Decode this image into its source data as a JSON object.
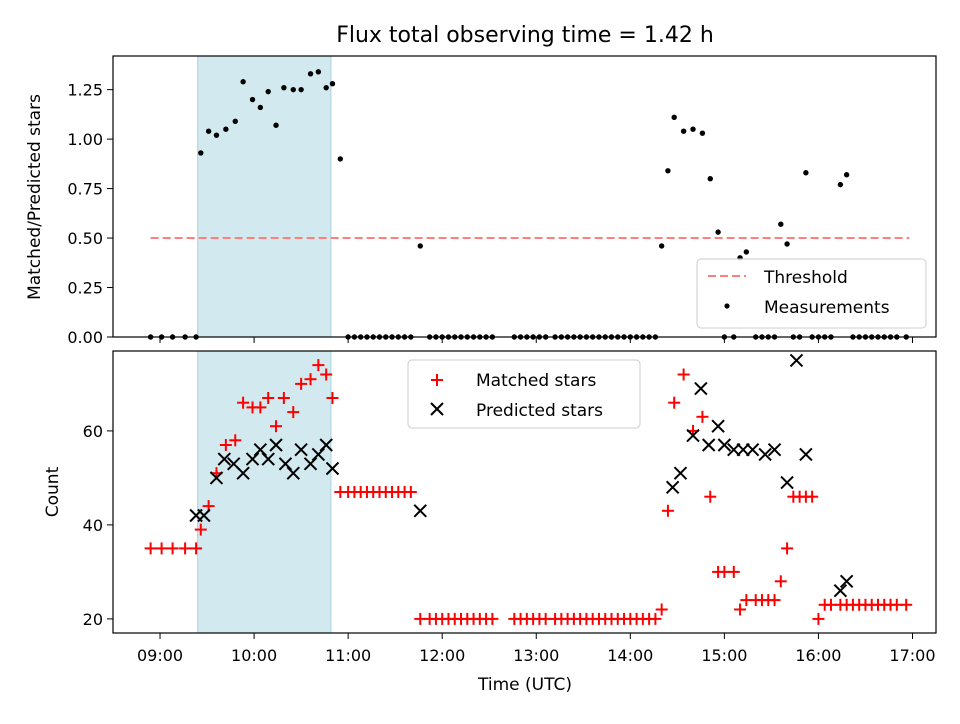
{
  "title": "Flux total observing time = 1.42 h",
  "chart_data": [
    {
      "type": "scatter",
      "ylabel": "Matched/Predicted stars",
      "xlim": [
        "08:30",
        "17:15"
      ],
      "ylim": [
        0,
        1.42
      ],
      "y_ticks": [
        0,
        0.25,
        0.5,
        0.75,
        1.0,
        1.25
      ],
      "y_tick_labels": [
        "0.00",
        "0.25",
        "0.50",
        "0.75",
        "1.00",
        "1.25"
      ],
      "shaded_interval": [
        "09:24",
        "10:49"
      ],
      "shade_color": "#d2e9f0",
      "legend": "lower-right",
      "series": [
        {
          "name": "Threshold",
          "style": "dashed-line",
          "color": "#ff7f7f",
          "x": [
            "08:54",
            "16:58"
          ],
          "y": [
            0.5,
            0.5
          ]
        },
        {
          "name": "Measurements",
          "style": "dot",
          "color": "#000000",
          "x": [
            "08:54",
            "09:01",
            "09:08",
            "09:16",
            "09:23",
            "09:26",
            "09:31",
            "09:36",
            "09:42",
            "09:48",
            "09:53",
            "09:59",
            "10:04",
            "10:09",
            "10:14",
            "10:19",
            "10:25",
            "10:30",
            "10:36",
            "10:41",
            "10:46",
            "10:50",
            "10:55",
            "11:00",
            "11:04",
            "11:08",
            "11:12",
            "11:16",
            "11:20",
            "11:24",
            "11:28",
            "11:32",
            "11:36",
            "11:40",
            "11:46",
            "11:52",
            "11:56",
            "12:00",
            "12:04",
            "12:08",
            "12:12",
            "12:16",
            "12:20",
            "12:24",
            "12:28",
            "12:32",
            "12:46",
            "12:50",
            "12:54",
            "12:58",
            "13:02",
            "13:06",
            "13:12",
            "13:16",
            "13:20",
            "13:24",
            "13:28",
            "13:32",
            "13:36",
            "13:40",
            "13:44",
            "13:48",
            "13:52",
            "13:56",
            "14:00",
            "14:04",
            "14:08",
            "14:12",
            "14:16",
            "14:20",
            "14:24",
            "14:28",
            "14:34",
            "14:40",
            "14:46",
            "14:51",
            "14:56",
            "15:00",
            "15:06",
            "15:10",
            "15:14",
            "15:20",
            "15:24",
            "15:28",
            "15:32",
            "15:36",
            "15:40",
            "15:44",
            "15:48",
            "15:52",
            "15:56",
            "16:00",
            "16:04",
            "16:08",
            "16:14",
            "16:18",
            "16:22",
            "16:26",
            "16:30",
            "16:34",
            "16:38",
            "16:42",
            "16:46",
            "16:50",
            "16:56"
          ],
          "y": [
            0,
            0,
            0,
            0,
            0,
            0.93,
            1.04,
            1.02,
            1.05,
            1.09,
            1.29,
            1.2,
            1.16,
            1.24,
            1.07,
            1.26,
            1.25,
            1.25,
            1.33,
            1.34,
            1.26,
            1.28,
            0.9,
            0,
            0,
            0,
            0,
            0,
            0,
            0,
            0,
            0,
            0,
            0,
            0.46,
            0,
            0,
            0,
            0,
            0,
            0,
            0,
            0,
            0,
            0,
            0,
            0,
            0,
            0,
            0,
            0,
            0,
            0,
            0,
            0,
            0,
            0,
            0,
            0,
            0,
            0,
            0,
            0,
            0,
            0,
            0,
            0,
            0,
            0,
            0.46,
            0.84,
            1.11,
            1.04,
            1.05,
            1.03,
            0.8,
            0.53,
            0,
            0,
            0.4,
            0.43,
            0,
            0,
            0,
            0,
            0.57,
            0.47,
            0,
            0,
            0.83,
            0,
            0,
            0,
            0,
            0.77,
            0.82,
            0,
            0,
            0,
            0,
            0,
            0,
            0,
            0,
            0
          ]
        }
      ]
    },
    {
      "type": "scatter",
      "xlabel": "Time (UTC)",
      "ylabel": "Count",
      "xlim": [
        "08:30",
        "17:15"
      ],
      "ylim": [
        17,
        77
      ],
      "x_ticks": [
        "09:00",
        "10:00",
        "11:00",
        "12:00",
        "13:00",
        "14:00",
        "15:00",
        "16:00",
        "17:00"
      ],
      "y_ticks": [
        20,
        40,
        60
      ],
      "shaded_interval": [
        "09:24",
        "10:49"
      ],
      "shade_color": "#d2e9f0",
      "legend": "top-center",
      "series": [
        {
          "name": "Matched stars",
          "marker": "plus",
          "color": "#ff0000",
          "x": [
            "08:54",
            "09:01",
            "09:08",
            "09:16",
            "09:23",
            "09:26",
            "09:31",
            "09:36",
            "09:42",
            "09:48",
            "09:53",
            "09:59",
            "10:04",
            "10:09",
            "10:14",
            "10:19",
            "10:25",
            "10:30",
            "10:36",
            "10:41",
            "10:46",
            "10:50",
            "10:55",
            "11:00",
            "11:04",
            "11:08",
            "11:12",
            "11:16",
            "11:20",
            "11:24",
            "11:28",
            "11:32",
            "11:36",
            "11:40",
            "11:46",
            "11:52",
            "11:56",
            "12:00",
            "12:04",
            "12:08",
            "12:12",
            "12:16",
            "12:20",
            "12:24",
            "12:28",
            "12:32",
            "12:46",
            "12:50",
            "12:54",
            "12:58",
            "13:02",
            "13:06",
            "13:12",
            "13:16",
            "13:20",
            "13:24",
            "13:28",
            "13:32",
            "13:36",
            "13:40",
            "13:44",
            "13:48",
            "13:52",
            "13:56",
            "14:00",
            "14:04",
            "14:08",
            "14:12",
            "14:16",
            "14:20",
            "14:24",
            "14:28",
            "14:34",
            "14:40",
            "14:46",
            "14:51",
            "14:56",
            "15:00",
            "15:06",
            "15:10",
            "15:14",
            "15:20",
            "15:24",
            "15:28",
            "15:32",
            "15:36",
            "15:40",
            "15:44",
            "15:48",
            "15:52",
            "15:56",
            "16:00",
            "16:04",
            "16:08",
            "16:14",
            "16:18",
            "16:22",
            "16:26",
            "16:30",
            "16:34",
            "16:38",
            "16:42",
            "16:46",
            "16:50",
            "16:56"
          ],
          "y": [
            35,
            35,
            35,
            35,
            35,
            39,
            44,
            51,
            57,
            58,
            66,
            65,
            65,
            67,
            61,
            67,
            64,
            70,
            71,
            74,
            72,
            67,
            47,
            47,
            47,
            47,
            47,
            47,
            47,
            47,
            47,
            47,
            47,
            47,
            20,
            20,
            20,
            20,
            20,
            20,
            20,
            20,
            20,
            20,
            20,
            20,
            20,
            20,
            20,
            20,
            20,
            20,
            20,
            20,
            20,
            20,
            20,
            20,
            20,
            20,
            20,
            20,
            20,
            20,
            20,
            20,
            20,
            20,
            20,
            22,
            43,
            66,
            72,
            60,
            63,
            46,
            30,
            30,
            30,
            22,
            24,
            24,
            24,
            24,
            24,
            28,
            35,
            46,
            46,
            46,
            46,
            20,
            23,
            23,
            23,
            23,
            23,
            23,
            23,
            23,
            23,
            23,
            23,
            23,
            23
          ]
        },
        {
          "name": "Predicted stars",
          "marker": "x",
          "color": "#000000",
          "x": [
            "09:23",
            "09:28",
            "09:36",
            "09:41",
            "09:47",
            "09:53",
            "09:59",
            "10:04",
            "10:09",
            "10:14",
            "10:20",
            "10:25",
            "10:30",
            "10:36",
            "10:41",
            "10:46",
            "10:50",
            "11:46",
            "14:27",
            "14:32",
            "14:40",
            "14:45",
            "14:50",
            "14:56",
            "15:00",
            "15:06",
            "15:12",
            "15:18",
            "15:26",
            "15:32",
            "15:40",
            "15:46",
            "15:52",
            "16:14",
            "16:18"
          ],
          "y": [
            42,
            42,
            50,
            54,
            53,
            51,
            54,
            56,
            54,
            57,
            53,
            51,
            56,
            53,
            55,
            57,
            52,
            43,
            48,
            51,
            59,
            69,
            57,
            61,
            57,
            56,
            56,
            56,
            55,
            56,
            49,
            75,
            55,
            26,
            28
          ]
        }
      ]
    }
  ]
}
